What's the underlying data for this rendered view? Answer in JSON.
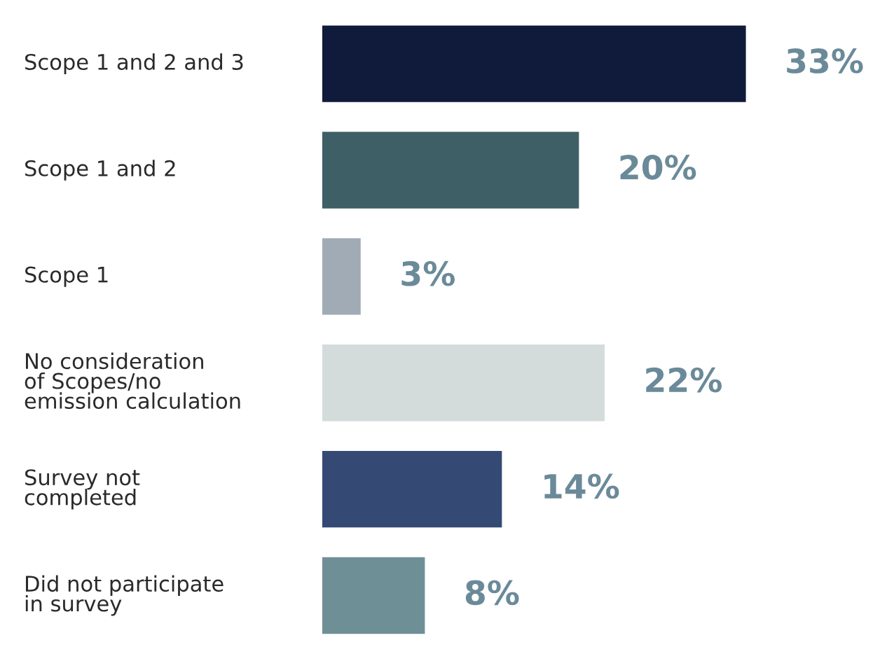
{
  "chart_data": {
    "type": "bar",
    "orientation": "horizontal",
    "categories": [
      "Scope 1 and 2 and 3",
      "Scope 1 and 2",
      "Scope 1",
      "No consideration\nof Scopes/no\nemission calculation",
      "Survey not\ncompleted",
      "Did not participate\nin survey"
    ],
    "values": [
      33,
      20,
      3,
      22,
      14,
      8
    ],
    "colors": [
      "#101a3a",
      "#3e5f66",
      "#a1abb6",
      "#d4dbdb",
      "#344a74",
      "#6f8f97"
    ],
    "value_labels": [
      "33%",
      "20%",
      "3%",
      "22%",
      "14%",
      "8%"
    ]
  }
}
